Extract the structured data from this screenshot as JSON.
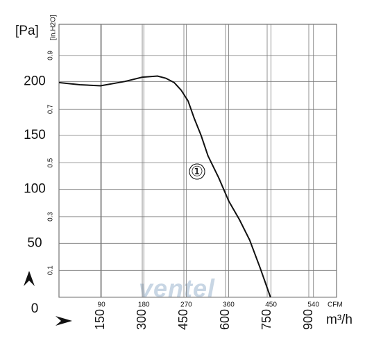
{
  "chart_data": {
    "type": "line",
    "y_label": "[Pa]",
    "y2_label": "[in.H2O]",
    "x_label": "m³/h",
    "x2_label": "CFM",
    "annotation": "①",
    "watermark": "ventel",
    "xlim": [
      0,
      1000
    ],
    "xticks": [
      150,
      300,
      450,
      600,
      750,
      900
    ],
    "x2lim": [
      0,
      589
    ],
    "x2ticks": [
      90,
      180,
      270,
      360,
      450,
      540
    ],
    "ylim": [
      0,
      253
    ],
    "yticks": [
      0,
      50,
      100,
      150,
      200
    ],
    "y2lim": [
      0,
      1.016
    ],
    "y2ticks": [
      0.1,
      0.3,
      0.5,
      0.7,
      0.9
    ],
    "grid": true,
    "series": [
      {
        "name": "1",
        "color": "#111111",
        "x": [
          0,
          75,
          150,
          237,
          300,
          355,
          385,
          415,
          440,
          465,
          487,
          512,
          537,
          575,
          612,
          650,
          687,
          725,
          762
        ],
        "values": [
          199,
          197,
          196,
          200,
          204,
          205,
          203,
          199,
          192,
          182,
          166,
          150,
          131,
          111,
          89,
          72,
          53,
          27,
          0
        ]
      }
    ]
  }
}
